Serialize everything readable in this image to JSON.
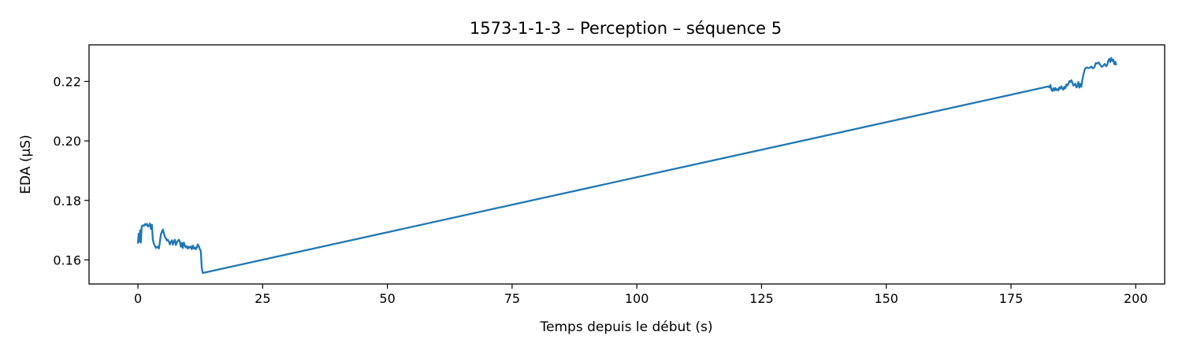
{
  "chart_data": {
    "type": "line",
    "title": "1573-1-1-3 – Perception – séquence 5",
    "xlabel": "Temps depuis le début (s)",
    "ylabel": "EDA (µS)",
    "xlim": [
      -9.8,
      205.8
    ],
    "ylim": [
      0.1519,
      0.2323
    ],
    "xticks": [
      0,
      25,
      50,
      75,
      100,
      125,
      150,
      175,
      200
    ],
    "yticks": [
      0.16,
      0.18,
      0.2,
      0.22
    ],
    "ytick_labels": [
      "0.16",
      "0.18",
      "0.20",
      "0.22"
    ],
    "grid": false,
    "series": [
      {
        "color": "#1f77b4",
        "x": [
          0,
          0.15,
          0.3,
          0.45,
          0.6,
          0.75,
          0.9,
          1.05,
          1.2,
          1.4,
          1.6,
          1.8,
          2.0,
          2.2,
          2.4,
          2.6,
          2.8,
          3.0,
          3.2,
          3.4,
          3.6,
          3.8,
          4.0,
          4.2,
          4.4,
          4.6,
          4.8,
          5.0,
          5.2,
          5.4,
          5.6,
          5.8,
          6.0,
          6.2,
          6.4,
          6.6,
          6.8,
          7.0,
          7.2,
          7.4,
          7.6,
          7.8,
          8.0,
          8.2,
          8.4,
          8.6,
          8.8,
          9.0,
          9.2,
          9.4,
          9.6,
          9.8,
          10.0,
          10.2,
          10.4,
          10.6,
          10.8,
          11.0,
          11.2,
          11.4,
          11.6,
          11.8,
          12.0,
          12.2,
          12.4,
          12.6,
          12.8,
          13.0,
          182.5,
          182.7,
          182.9,
          183.1,
          183.3,
          183.5,
          183.7,
          183.9,
          184.1,
          184.3,
          184.5,
          184.7,
          184.9,
          185.1,
          185.3,
          185.5,
          185.7,
          185.9,
          186.1,
          186.3,
          186.5,
          186.7,
          186.9,
          187.1,
          187.3,
          187.5,
          187.7,
          187.9,
          188.1,
          188.3,
          188.5,
          188.7,
          188.9,
          189.1,
          189.3,
          189.5,
          189.7,
          189.9,
          190.1,
          190.3,
          190.5,
          190.8,
          191.1,
          191.4,
          191.7,
          192.0,
          192.3,
          192.6,
          192.9,
          193.2,
          193.5,
          193.8,
          194.1,
          194.3,
          194.5,
          194.7,
          194.9,
          195.1,
          195.3,
          195.5,
          195.7,
          195.9,
          196.1
        ],
        "y": [
          0.1655,
          0.1688,
          0.1662,
          0.17,
          0.1658,
          0.1712,
          0.1715,
          0.1716,
          0.1714,
          0.172,
          0.1718,
          0.1721,
          0.1712,
          0.1716,
          0.1722,
          0.1704,
          0.1718,
          0.1668,
          0.1654,
          0.1647,
          0.164,
          0.1643,
          0.1645,
          0.1638,
          0.166,
          0.1686,
          0.1694,
          0.1702,
          0.169,
          0.1678,
          0.1672,
          0.1665,
          0.1668,
          0.1662,
          0.1652,
          0.166,
          0.1666,
          0.1651,
          0.1662,
          0.1668,
          0.165,
          0.1659,
          0.1664,
          0.1668,
          0.1661,
          0.1644,
          0.1657,
          0.164,
          0.1658,
          0.1648,
          0.1642,
          0.1646,
          0.1638,
          0.1644,
          0.1641,
          0.1645,
          0.1636,
          0.1648,
          0.1638,
          0.1642,
          0.1636,
          0.1642,
          0.1652,
          0.1646,
          0.1636,
          0.163,
          0.1572,
          0.1556,
          0.2183,
          0.218,
          0.2188,
          0.2172,
          0.2168,
          0.2177,
          0.2169,
          0.2178,
          0.2171,
          0.2174,
          0.217,
          0.218,
          0.2176,
          0.2184,
          0.2176,
          0.2172,
          0.2182,
          0.2177,
          0.219,
          0.2186,
          0.2192,
          0.2201,
          0.2198,
          0.2204,
          0.2196,
          0.2186,
          0.2189,
          0.2192,
          0.218,
          0.2184,
          0.2198,
          0.2179,
          0.2192,
          0.2182,
          0.2204,
          0.2222,
          0.2236,
          0.2244,
          0.2246,
          0.2247,
          0.2245,
          0.2246,
          0.225,
          0.2244,
          0.2247,
          0.2262,
          0.226,
          0.2264,
          0.2255,
          0.2249,
          0.2253,
          0.2259,
          0.2251,
          0.2256,
          0.227,
          0.2276,
          0.2265,
          0.2279,
          0.2269,
          0.2273,
          0.2258,
          0.2266,
          0.2254
        ]
      }
    ]
  }
}
